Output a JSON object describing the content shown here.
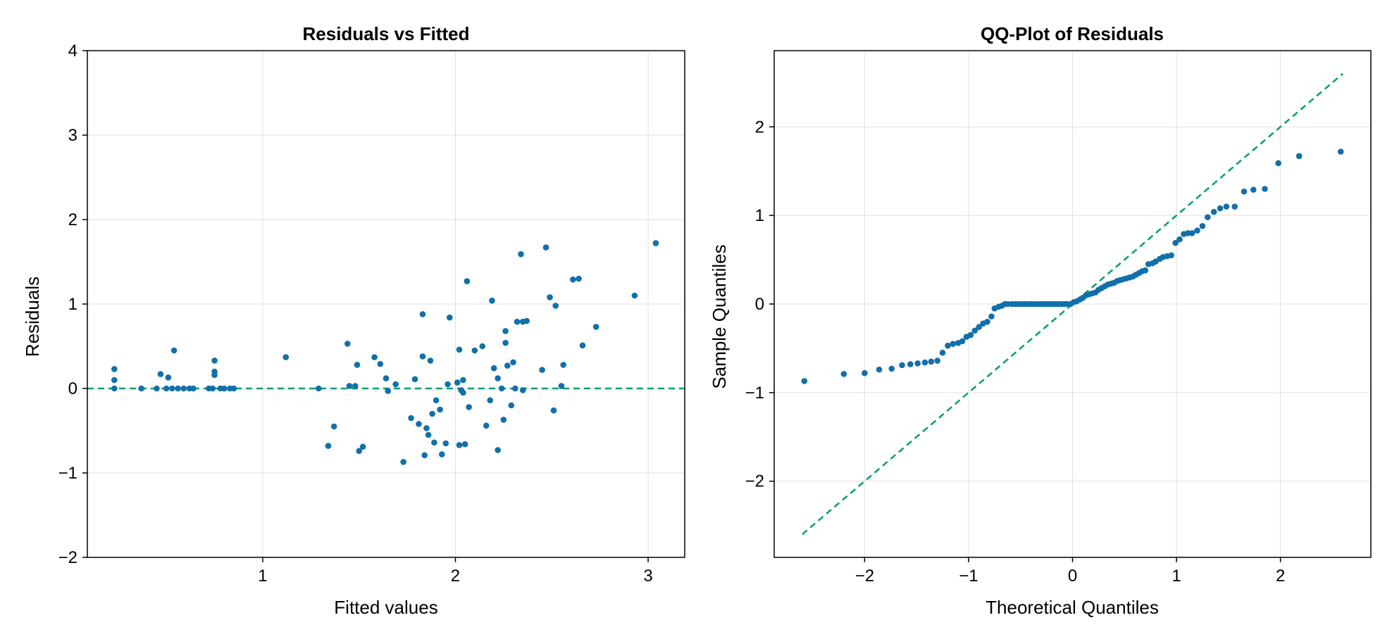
{
  "colors": {
    "points": "#1170aa",
    "reference": "#009e73"
  },
  "chart_data": [
    {
      "type": "scatter",
      "title": "Residuals vs Fitted",
      "xlabel": "Fitted values",
      "ylabel": "Residuals",
      "xlim": [
        0.09,
        3.19
      ],
      "ylim": [
        -2,
        4
      ],
      "xticks": [
        1,
        2,
        3
      ],
      "yticks": [
        -2,
        -1,
        0,
        1,
        2,
        3,
        4
      ],
      "tick_labels_x": [
        "1",
        "2",
        "3"
      ],
      "tick_labels_y": [
        "−2",
        "−1",
        "0",
        "1",
        "2",
        "3",
        "4"
      ],
      "grid": true,
      "reference_line": {
        "style": "dashed",
        "points": [
          [
            0.09,
            0
          ],
          [
            3.19,
            0
          ]
        ]
      },
      "points": [
        [
          0.23,
          0.23
        ],
        [
          0.23,
          0.1
        ],
        [
          0.23,
          0.0
        ],
        [
          0.37,
          0.0
        ],
        [
          0.45,
          0.0
        ],
        [
          0.47,
          0.17
        ],
        [
          0.5,
          0.0
        ],
        [
          0.51,
          0.13
        ],
        [
          0.53,
          0.0
        ],
        [
          0.54,
          0.45
        ],
        [
          0.56,
          0.0
        ],
        [
          0.59,
          0.0
        ],
        [
          0.62,
          0.0
        ],
        [
          0.64,
          0.0
        ],
        [
          0.72,
          0.0
        ],
        [
          0.74,
          0.0
        ],
        [
          0.75,
          0.33
        ],
        [
          0.75,
          0.2
        ],
        [
          0.75,
          0.16
        ],
        [
          0.78,
          0.0
        ],
        [
          0.8,
          0.0
        ],
        [
          0.83,
          0.0
        ],
        [
          0.85,
          0.0
        ],
        [
          1.12,
          0.37
        ],
        [
          1.29,
          0.0
        ],
        [
          1.34,
          -0.68
        ],
        [
          1.37,
          -0.45
        ],
        [
          1.44,
          0.53
        ],
        [
          1.45,
          0.03
        ],
        [
          1.48,
          0.03
        ],
        [
          1.49,
          0.28
        ],
        [
          1.5,
          -0.74
        ],
        [
          1.52,
          -0.69
        ],
        [
          1.58,
          0.37
        ],
        [
          1.61,
          0.29
        ],
        [
          1.64,
          0.12
        ],
        [
          1.65,
          -0.03
        ],
        [
          1.69,
          0.05
        ],
        [
          1.73,
          -0.87
        ],
        [
          1.77,
          -0.35
        ],
        [
          1.79,
          0.11
        ],
        [
          1.81,
          -0.42
        ],
        [
          1.83,
          0.88
        ],
        [
          1.83,
          0.38
        ],
        [
          1.84,
          -0.79
        ],
        [
          1.85,
          -0.47
        ],
        [
          1.86,
          -0.55
        ],
        [
          1.87,
          0.33
        ],
        [
          1.88,
          -0.3
        ],
        [
          1.89,
          -0.64
        ],
        [
          1.9,
          -0.14
        ],
        [
          1.92,
          -0.25
        ],
        [
          1.93,
          -0.78
        ],
        [
          1.95,
          -0.65
        ],
        [
          1.96,
          0.05
        ],
        [
          1.97,
          0.84
        ],
        [
          2.01,
          0.07
        ],
        [
          2.02,
          0.46
        ],
        [
          2.02,
          -0.67
        ],
        [
          2.03,
          -0.02
        ],
        [
          2.04,
          0.1
        ],
        [
          2.04,
          -0.05
        ],
        [
          2.05,
          -0.66
        ],
        [
          2.06,
          1.27
        ],
        [
          2.07,
          -0.22
        ],
        [
          2.1,
          0.45
        ],
        [
          2.14,
          0.5
        ],
        [
          2.16,
          -0.44
        ],
        [
          2.18,
          -0.14
        ],
        [
          2.19,
          1.04
        ],
        [
          2.2,
          0.24
        ],
        [
          2.22,
          0.12
        ],
        [
          2.22,
          -0.73
        ],
        [
          2.24,
          0.0
        ],
        [
          2.25,
          -0.37
        ],
        [
          2.26,
          0.68
        ],
        [
          2.26,
          0.54
        ],
        [
          2.27,
          0.27
        ],
        [
          2.29,
          -0.2
        ],
        [
          2.3,
          0.31
        ],
        [
          2.31,
          0.0
        ],
        [
          2.32,
          0.79
        ],
        [
          2.34,
          1.59
        ],
        [
          2.35,
          0.79
        ],
        [
          2.35,
          -0.02
        ],
        [
          2.37,
          0.8
        ],
        [
          2.45,
          0.22
        ],
        [
          2.47,
          1.67
        ],
        [
          2.49,
          1.08
        ],
        [
          2.51,
          -0.26
        ],
        [
          2.52,
          0.98
        ],
        [
          2.55,
          0.03
        ],
        [
          2.56,
          0.28
        ],
        [
          2.61,
          1.29
        ],
        [
          2.64,
          1.3
        ],
        [
          2.66,
          0.51
        ],
        [
          2.73,
          0.73
        ],
        [
          2.93,
          1.1
        ],
        [
          3.04,
          1.72
        ]
      ]
    },
    {
      "type": "scatter",
      "title": "QQ-Plot of Residuals",
      "xlabel": "Theoretical Quantiles",
      "ylabel": "Sample Quantiles",
      "xlim": [
        -2.87,
        2.87
      ],
      "ylim": [
        -2.86,
        2.86
      ],
      "xticks": [
        -2,
        -1,
        0,
        1,
        2
      ],
      "yticks": [
        -2,
        -1,
        0,
        1,
        2
      ],
      "tick_labels_x": [
        "−2",
        "−1",
        "0",
        "1",
        "2"
      ],
      "tick_labels_y": [
        "−2",
        "−1",
        "0",
        "1",
        "2"
      ],
      "grid": true,
      "reference_line": {
        "style": "dashed",
        "points": [
          [
            -2.6,
            -2.6
          ],
          [
            2.6,
            2.6
          ]
        ]
      },
      "points": [
        [
          -2.58,
          -0.87
        ],
        [
          -2.2,
          -0.79
        ],
        [
          -2.0,
          -0.78
        ],
        [
          -1.86,
          -0.74
        ],
        [
          -1.74,
          -0.73
        ],
        [
          -1.64,
          -0.69
        ],
        [
          -1.56,
          -0.68
        ],
        [
          -1.49,
          -0.67
        ],
        [
          -1.42,
          -0.66
        ],
        [
          -1.36,
          -0.65
        ],
        [
          -1.3,
          -0.64
        ],
        [
          -1.25,
          -0.55
        ],
        [
          -1.2,
          -0.47
        ],
        [
          -1.15,
          -0.45
        ],
        [
          -1.1,
          -0.44
        ],
        [
          -1.06,
          -0.42
        ],
        [
          -1.02,
          -0.37
        ],
        [
          -0.98,
          -0.35
        ],
        [
          -0.94,
          -0.3
        ],
        [
          -0.9,
          -0.26
        ],
        [
          -0.86,
          -0.22
        ],
        [
          -0.82,
          -0.2
        ],
        [
          -0.78,
          -0.14
        ],
        [
          -0.75,
          -0.05
        ],
        [
          -0.71,
          -0.03
        ],
        [
          -0.68,
          -0.02
        ],
        [
          -0.65,
          0.0
        ],
        [
          -0.62,
          0.0
        ],
        [
          -0.58,
          0.0
        ],
        [
          -0.55,
          0.0
        ],
        [
          -0.52,
          0.0
        ],
        [
          -0.49,
          0.0
        ],
        [
          -0.46,
          0.0
        ],
        [
          -0.43,
          0.0
        ],
        [
          -0.4,
          0.0
        ],
        [
          -0.37,
          0.0
        ],
        [
          -0.34,
          0.0
        ],
        [
          -0.31,
          0.0
        ],
        [
          -0.28,
          0.0
        ],
        [
          -0.25,
          0.0
        ],
        [
          -0.22,
          0.0
        ],
        [
          -0.19,
          0.0
        ],
        [
          -0.16,
          0.0
        ],
        [
          -0.13,
          0.0
        ],
        [
          -0.1,
          0.0
        ],
        [
          -0.07,
          0.0
        ],
        [
          -0.05,
          0.0
        ],
        [
          -0.02,
          0.0
        ],
        [
          0.01,
          0.02
        ],
        [
          0.04,
          0.03
        ],
        [
          0.07,
          0.05
        ],
        [
          0.1,
          0.07
        ],
        [
          0.13,
          0.1
        ],
        [
          0.16,
          0.11
        ],
        [
          0.19,
          0.12
        ],
        [
          0.22,
          0.13
        ],
        [
          0.25,
          0.16
        ],
        [
          0.28,
          0.18
        ],
        [
          0.31,
          0.2
        ],
        [
          0.34,
          0.22
        ],
        [
          0.37,
          0.23
        ],
        [
          0.4,
          0.24
        ],
        [
          0.43,
          0.26
        ],
        [
          0.46,
          0.27
        ],
        [
          0.49,
          0.28
        ],
        [
          0.52,
          0.29
        ],
        [
          0.55,
          0.3
        ],
        [
          0.58,
          0.31
        ],
        [
          0.61,
          0.33
        ],
        [
          0.64,
          0.35
        ],
        [
          0.67,
          0.37
        ],
        [
          0.7,
          0.38
        ],
        [
          0.73,
          0.45
        ],
        [
          0.77,
          0.46
        ],
        [
          0.8,
          0.48
        ],
        [
          0.84,
          0.51
        ],
        [
          0.87,
          0.53
        ],
        [
          0.91,
          0.54
        ],
        [
          0.95,
          0.55
        ],
        [
          0.99,
          0.69
        ],
        [
          1.03,
          0.73
        ],
        [
          1.07,
          0.79
        ],
        [
          1.11,
          0.8
        ],
        [
          1.15,
          0.8
        ],
        [
          1.2,
          0.83
        ],
        [
          1.25,
          0.88
        ],
        [
          1.3,
          0.98
        ],
        [
          1.36,
          1.04
        ],
        [
          1.42,
          1.08
        ],
        [
          1.48,
          1.1
        ],
        [
          1.56,
          1.1
        ],
        [
          1.65,
          1.27
        ],
        [
          1.74,
          1.29
        ],
        [
          1.85,
          1.3
        ],
        [
          1.98,
          1.59
        ],
        [
          2.18,
          1.67
        ],
        [
          2.58,
          1.72
        ]
      ]
    }
  ]
}
